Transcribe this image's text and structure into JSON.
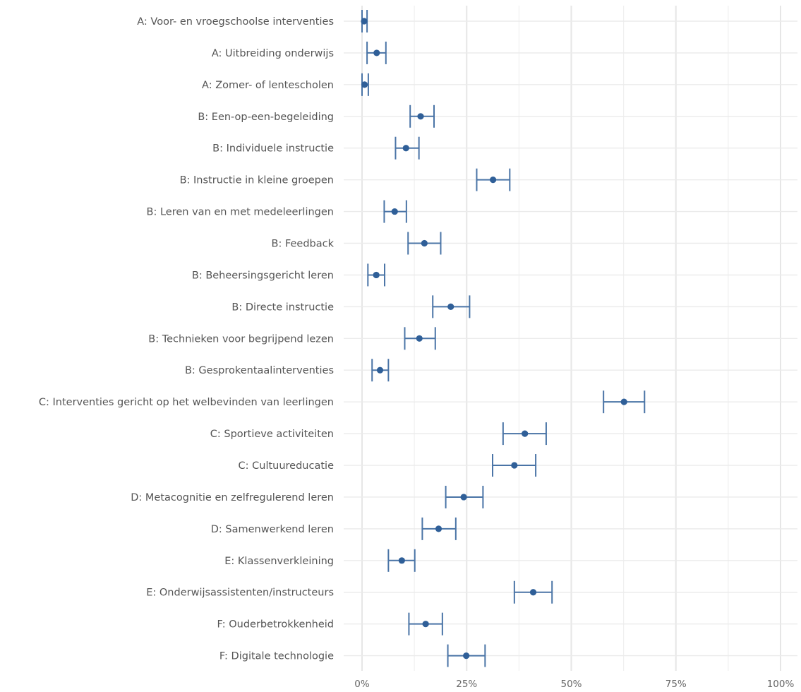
{
  "chart_data": {
    "type": "scatter",
    "orientation": "horizontal",
    "title": "",
    "xlabel": "",
    "ylabel": "",
    "xlim": [
      0,
      100
    ],
    "x_ticks": [
      0,
      25,
      50,
      75,
      100
    ],
    "x_tick_labels": [
      "0%",
      "25%",
      "50%",
      "75%",
      "100%"
    ],
    "grid": true,
    "legend": "none",
    "colors": {
      "point": "#2f5f98",
      "errorbar": "#4a74a6"
    },
    "series": [
      {
        "points": [
          {
            "label": "A: Voor- en vroegschoolse interventies",
            "estimate": 0.5,
            "lower": 0.0,
            "upper": 1.2
          },
          {
            "label": "A: Uitbreiding onderwijs",
            "estimate": 3.5,
            "lower": 1.2,
            "upper": 5.7
          },
          {
            "label": "A: Zomer- of lentescholen",
            "estimate": 0.6,
            "lower": 0.0,
            "upper": 1.5
          },
          {
            "label": "B: Een-op-een-begeleiding",
            "estimate": 14.0,
            "lower": 11.5,
            "upper": 17.2
          },
          {
            "label": "B: Individuele instructie",
            "estimate": 10.5,
            "lower": 8.0,
            "upper": 13.6
          },
          {
            "label": "B: Instructie in kleine groepen",
            "estimate": 31.3,
            "lower": 27.4,
            "upper": 35.3
          },
          {
            "label": "B: Leren van en met medeleerlingen",
            "estimate": 7.8,
            "lower": 5.3,
            "upper": 10.6
          },
          {
            "label": "B: Feedback",
            "estimate": 14.9,
            "lower": 11.0,
            "upper": 18.8
          },
          {
            "label": "B: Beheersingsgericht leren",
            "estimate": 3.4,
            "lower": 1.4,
            "upper": 5.4
          },
          {
            "label": "B: Directe instructie",
            "estimate": 21.2,
            "lower": 16.9,
            "upper": 25.7
          },
          {
            "label": "B: Technieken voor begrijpend lezen",
            "estimate": 13.7,
            "lower": 10.2,
            "upper": 17.5
          },
          {
            "label": "B: Gesprokentaalinterventies",
            "estimate": 4.3,
            "lower": 2.4,
            "upper": 6.3
          },
          {
            "label": "C: Interventies gericht op het welbevinden van leerlingen",
            "estimate": 62.6,
            "lower": 57.7,
            "upper": 67.5
          },
          {
            "label": "C: Sportieve activiteiten",
            "estimate": 38.9,
            "lower": 33.7,
            "upper": 44.0
          },
          {
            "label": "C: Cultuureducatie",
            "estimate": 36.4,
            "lower": 31.2,
            "upper": 41.5
          },
          {
            "label": "D: Metacognitie en zelfregulerend leren",
            "estimate": 24.3,
            "lower": 20.0,
            "upper": 28.9
          },
          {
            "label": "D: Samenwerkend leren",
            "estimate": 18.3,
            "lower": 14.4,
            "upper": 22.4
          },
          {
            "label": "E: Klassenverkleining",
            "estimate": 9.5,
            "lower": 6.3,
            "upper": 12.6
          },
          {
            "label": "E: Onderwijsassistenten/instructeurs",
            "estimate": 40.9,
            "lower": 36.4,
            "upper": 45.4
          },
          {
            "label": "F: Ouderbetrokkenheid",
            "estimate": 15.2,
            "lower": 11.2,
            "upper": 19.2
          },
          {
            "label": "F: Digitale technologie",
            "estimate": 24.9,
            "lower": 20.5,
            "upper": 29.4
          }
        ]
      }
    ]
  }
}
